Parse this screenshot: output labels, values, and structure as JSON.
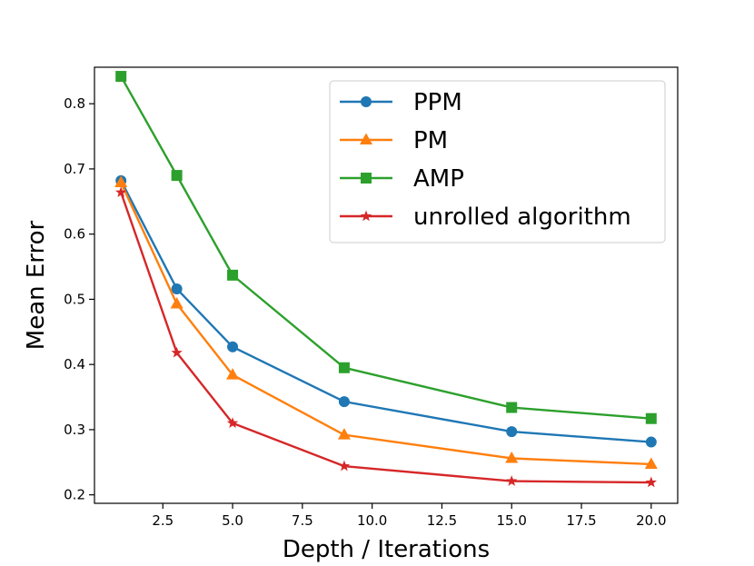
{
  "chart_data": {
    "type": "line",
    "title": "",
    "xlabel": "Depth / Iterations",
    "ylabel": "Mean Error",
    "x": [
      1,
      3,
      5,
      9,
      15,
      20
    ],
    "xlim": [
      0.05,
      20.95
    ],
    "ylim": [
      0.187,
      0.856
    ],
    "xticks": [
      2.5,
      5.0,
      7.5,
      10.0,
      12.5,
      15.0,
      17.5,
      20.0
    ],
    "xtick_labels": [
      "2.5",
      "5.0",
      "7.5",
      "10.0",
      "12.5",
      "15.0",
      "17.5",
      "20.0"
    ],
    "yticks": [
      0.2,
      0.3,
      0.4,
      0.5,
      0.6,
      0.7,
      0.8
    ],
    "ytick_labels": [
      "0.2",
      "0.3",
      "0.4",
      "0.5",
      "0.6",
      "0.7",
      "0.8"
    ],
    "grid": false,
    "legend_position": "top-right",
    "series": [
      {
        "name": "PPM",
        "color": "#1f77b4",
        "marker": "circle",
        "values": [
          0.682,
          0.516,
          0.427,
          0.343,
          0.297,
          0.281
        ]
      },
      {
        "name": "PM",
        "color": "#ff7f0e",
        "marker": "triangle",
        "values": [
          0.679,
          0.493,
          0.384,
          0.292,
          0.256,
          0.247
        ]
      },
      {
        "name": "AMP",
        "color": "#2ca02c",
        "marker": "square",
        "values": [
          0.842,
          0.69,
          0.537,
          0.395,
          0.334,
          0.317
        ]
      },
      {
        "name": "unrolled algorithm",
        "color": "#d62728",
        "marker": "star",
        "values": [
          0.664,
          0.418,
          0.31,
          0.244,
          0.221,
          0.219
        ]
      }
    ]
  }
}
